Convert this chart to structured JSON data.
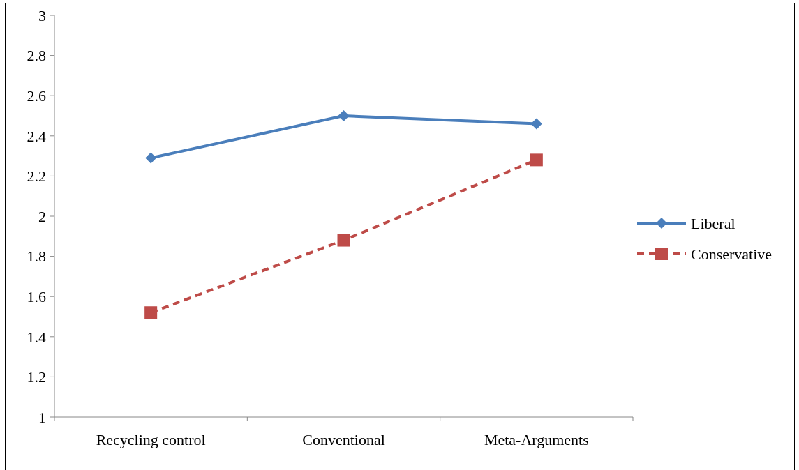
{
  "chart_data": {
    "type": "line",
    "categories": [
      "Recycling control",
      "Conventional",
      "Meta-Arguments"
    ],
    "series": [
      {
        "name": "Liberal",
        "color": "#4a7ebb",
        "values": [
          2.29,
          2.5,
          2.46
        ],
        "marker": "diamond",
        "line_style": "solid"
      },
      {
        "name": "Conservative",
        "color": "#be4b48",
        "values": [
          1.52,
          1.88,
          2.28
        ],
        "marker": "square",
        "line_style": "dashed"
      }
    ],
    "ylim": [
      1,
      3
    ],
    "yticks": [
      1,
      1.2,
      1.4,
      1.6,
      1.8,
      2,
      2.2,
      2.4,
      2.6,
      2.8,
      3
    ],
    "legend": "right",
    "grid": false
  }
}
